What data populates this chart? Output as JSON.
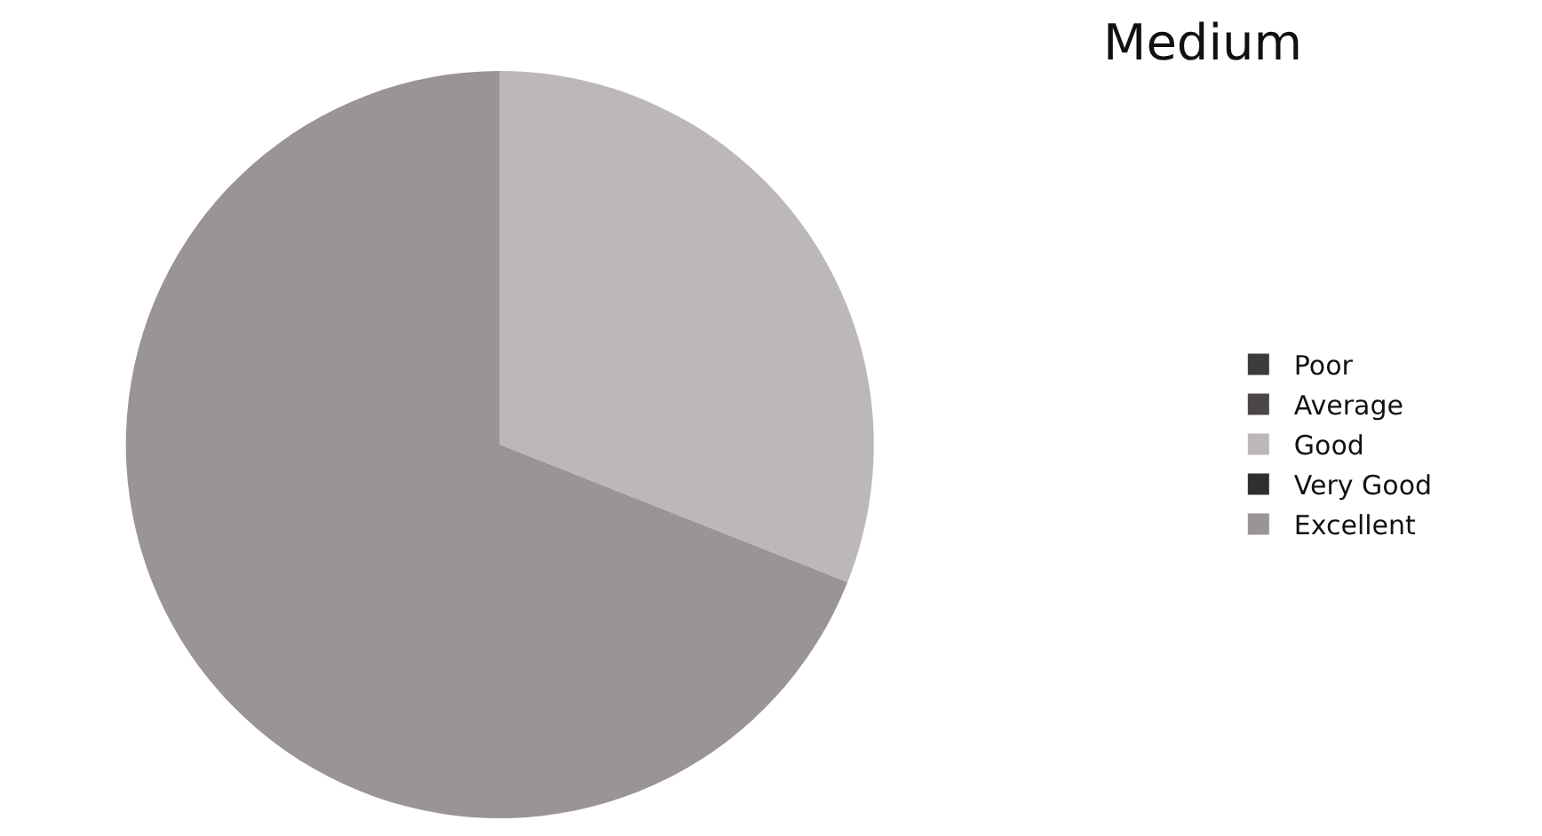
{
  "chart_data": {
    "type": "pie",
    "title": "Medium",
    "categories": [
      "Poor",
      "Average",
      "Good",
      "Very Good",
      "Excellent"
    ],
    "values": [
      0,
      0,
      31,
      0,
      69
    ],
    "colors": [
      "#3c3a3a",
      "#4a4646",
      "#bdb8b8",
      "#302e2e",
      "#9a9494"
    ],
    "legend": "right"
  }
}
